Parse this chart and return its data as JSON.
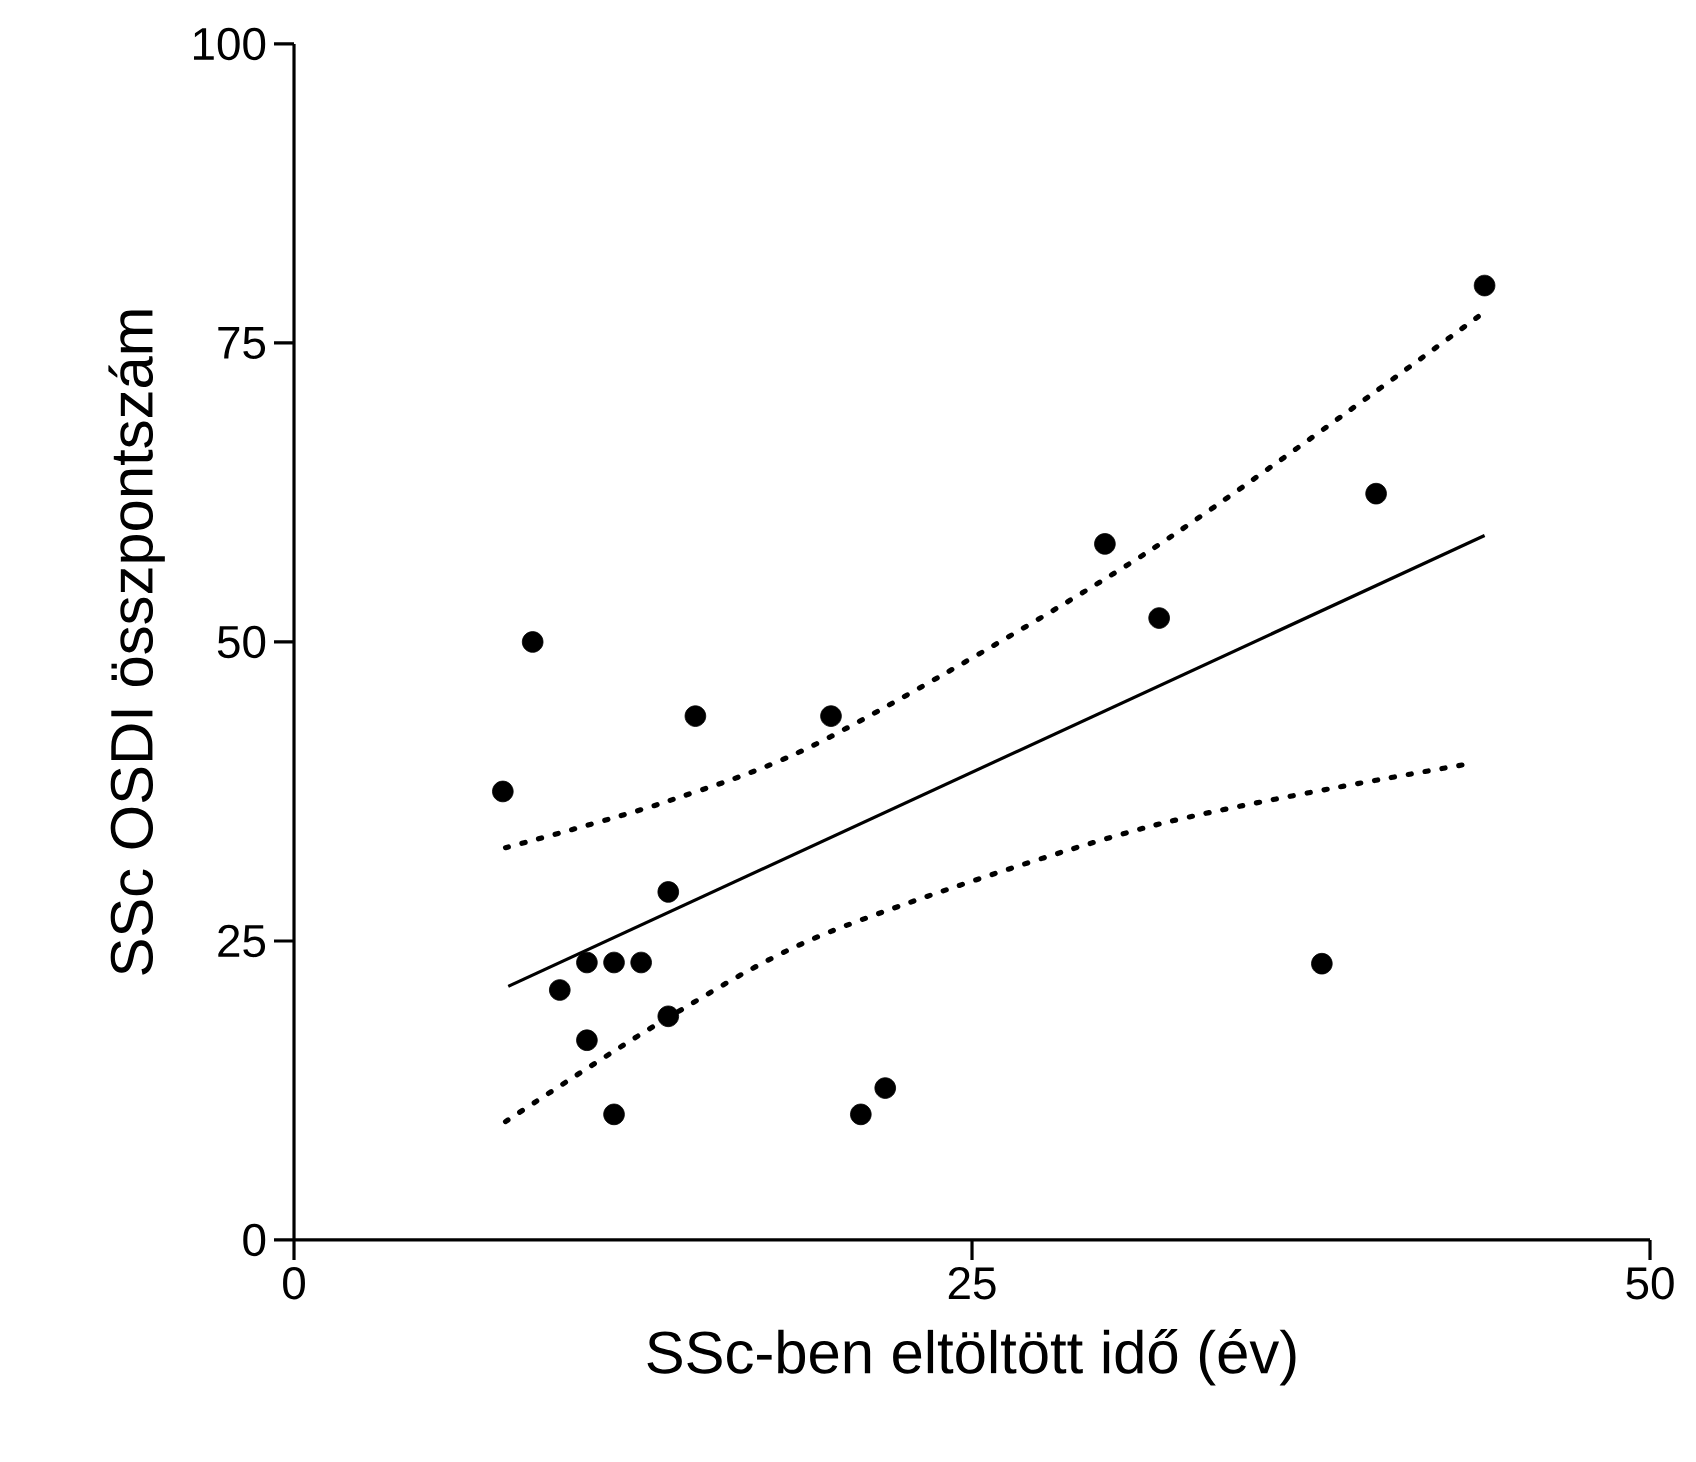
{
  "chart_data": {
    "type": "scatter",
    "xlabel": "SSc-ben eltöltött idő (év)",
    "ylabel": "SSc OSDI összpontszám",
    "xlim": [
      0,
      50
    ],
    "xticks": [
      0,
      25,
      50
    ],
    "ylim": [
      0,
      100
    ],
    "yticks": [
      0,
      25,
      50,
      75,
      100
    ],
    "series": [
      {
        "color": "#000000",
        "marker": "circle",
        "x": [
          7.7,
          8.8,
          9.8,
          10.8,
          10.8,
          11.8,
          11.8,
          12.8,
          13.8,
          13.8,
          14.8,
          19.8,
          20.9,
          21.8,
          29.9,
          31.9,
          37.9,
          39.9,
          43.9
        ],
        "values": [
          37.5,
          50,
          20.9,
          23.2,
          16.7,
          23.2,
          10.5,
          23.2,
          29.1,
          18.7,
          43.8,
          43.8,
          10.5,
          12.7,
          58.2,
          52,
          23.1,
          62.4,
          79.8
        ]
      },
      {
        "type": "line",
        "color": "#000000",
        "marker": "none",
        "line_style": "solid",
        "x": [
          7.9,
          43.9
        ],
        "values": [
          21.2,
          58.9
        ]
      },
      {
        "type": "line",
        "color": "#000000",
        "marker": "none",
        "line_style": "dotted",
        "x": [
          7.8,
          13.8,
          19.8,
          31.6,
          43.9
        ],
        "values": [
          32.8,
          36.7,
          42.1,
          57.7,
          77.6
        ]
      },
      {
        "type": "line",
        "color": "#000000",
        "marker": "none",
        "line_style": "dotted",
        "x": [
          7.8,
          13.8,
          19.8,
          31.6,
          43.3
        ],
        "values": [
          9.9,
          18.6,
          25.8,
          34.6,
          39.8
        ]
      }
    ]
  }
}
